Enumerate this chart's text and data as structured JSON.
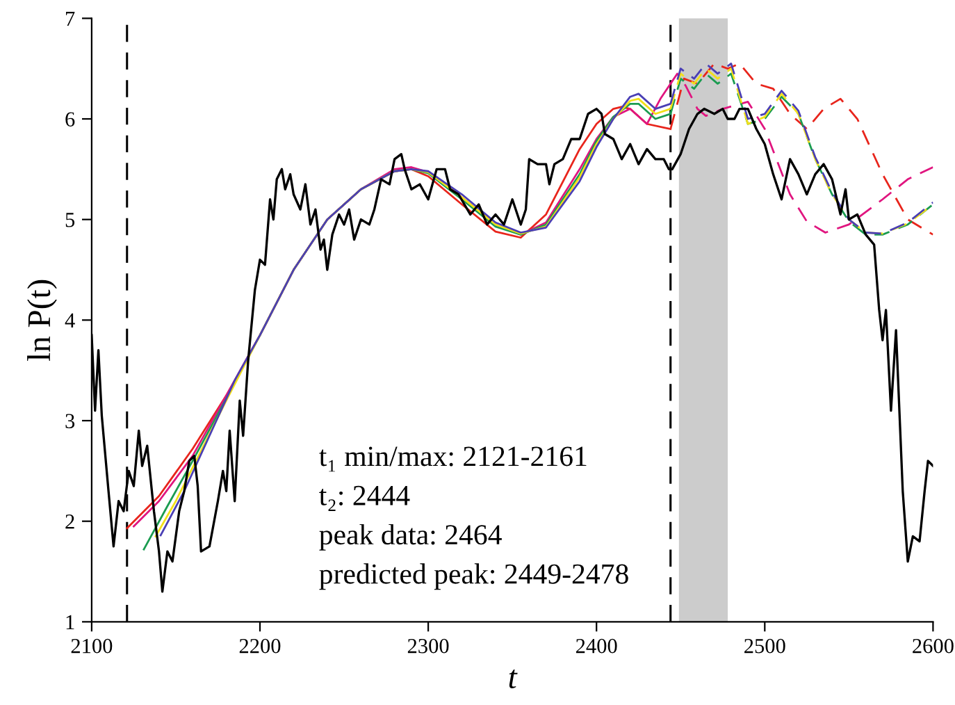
{
  "chart_data": {
    "type": "line",
    "xlabel": "t",
    "ylabel": "ln P(t)",
    "xlim": [
      2100,
      2600
    ],
    "ylim": [
      1,
      7
    ],
    "xticks": [
      2100,
      2200,
      2300,
      2400,
      2500,
      2600
    ],
    "yticks": [
      1,
      2,
      3,
      4,
      5,
      6,
      7
    ],
    "grid": false,
    "legend": false,
    "marker": "none",
    "ref_lines": [
      {
        "axis": "x",
        "value": 2121,
        "color": "#000000",
        "line_style": "dashed"
      },
      {
        "axis": "x",
        "value": 2444,
        "color": "#000000",
        "line_style": "dashed"
      }
    ],
    "bands": [
      {
        "axis": "x",
        "from": 2449,
        "to": 2478,
        "color": "#cccccc"
      }
    ],
    "annotations": [
      "t₁ min/max: 2121-2161",
      "t₂: 2444",
      "peak data: 2464",
      "predicted peak: 2449-2478"
    ],
    "series": [
      {
        "color": "#000000",
        "line_style": "solid",
        "x": [
          2100,
          2102,
          2104,
          2106,
          2110,
          2113,
          2116,
          2119,
          2122,
          2125,
          2128,
          2130,
          2133,
          2137,
          2140,
          2142,
          2145,
          2148,
          2152,
          2155,
          2158,
          2161,
          2163,
          2165,
          2170,
          2175,
          2178,
          2180,
          2182,
          2185,
          2188,
          2190,
          2193,
          2197,
          2200,
          2203,
          2206,
          2208,
          2210,
          2213,
          2215,
          2218,
          2220,
          2224,
          2227,
          2230,
          2233,
          2236,
          2238,
          2240,
          2243,
          2247,
          2250,
          2253,
          2256,
          2260,
          2265,
          2268,
          2272,
          2277,
          2280,
          2284,
          2286,
          2290,
          2295,
          2300,
          2305,
          2310,
          2313,
          2318,
          2325,
          2330,
          2335,
          2340,
          2345,
          2350,
          2355,
          2358,
          2360,
          2365,
          2370,
          2372,
          2375,
          2380,
          2385,
          2390,
          2395,
          2400,
          2403,
          2405,
          2410,
          2415,
          2420,
          2425,
          2430,
          2435,
          2440,
          2443,
          2445,
          2450,
          2455,
          2460,
          2464,
          2470,
          2475,
          2478,
          2482,
          2485,
          2490,
          2495,
          2500,
          2505,
          2510,
          2515,
          2520,
          2525,
          2530,
          2535,
          2540,
          2545,
          2548,
          2550,
          2555,
          2560,
          2565,
          2568,
          2570,
          2572,
          2575,
          2578,
          2582,
          2585,
          2588,
          2592,
          2595,
          2597,
          2600
        ],
        "values": [
          3.85,
          3.1,
          3.7,
          3.05,
          2.3,
          1.75,
          2.2,
          2.1,
          2.5,
          2.35,
          2.9,
          2.55,
          2.75,
          2.1,
          1.7,
          1.3,
          1.7,
          1.6,
          2.1,
          2.3,
          2.6,
          2.65,
          2.35,
          1.7,
          1.75,
          2.2,
          2.5,
          2.3,
          2.9,
          2.2,
          3.2,
          2.85,
          3.6,
          4.3,
          4.6,
          4.55,
          5.2,
          5.0,
          5.4,
          5.5,
          5.3,
          5.45,
          5.25,
          5.1,
          5.35,
          4.95,
          5.1,
          4.7,
          4.8,
          4.5,
          4.85,
          5.05,
          4.95,
          5.1,
          4.8,
          5.0,
          4.95,
          5.1,
          5.4,
          5.35,
          5.6,
          5.65,
          5.5,
          5.3,
          5.35,
          5.2,
          5.5,
          5.5,
          5.3,
          5.25,
          5.05,
          5.15,
          4.95,
          5.05,
          4.95,
          5.2,
          4.95,
          5.1,
          5.6,
          5.55,
          5.55,
          5.35,
          5.55,
          5.6,
          5.8,
          5.8,
          6.05,
          6.1,
          6.05,
          5.85,
          5.8,
          5.6,
          5.75,
          5.55,
          5.7,
          5.6,
          5.6,
          5.5,
          5.5,
          5.65,
          5.9,
          6.05,
          6.1,
          6.05,
          6.1,
          6.0,
          6.0,
          6.1,
          6.1,
          5.9,
          5.75,
          5.45,
          5.2,
          5.6,
          5.45,
          5.25,
          5.45,
          5.55,
          5.4,
          5.05,
          5.3,
          5.0,
          5.05,
          4.85,
          4.75,
          4.1,
          3.8,
          4.1,
          3.1,
          3.9,
          2.3,
          1.6,
          1.85,
          1.8,
          2.3,
          2.6,
          2.55
        ]
      },
      {
        "color": "#e8251c",
        "line_style": "solid",
        "x": [
          2121,
          2140,
          2160,
          2180,
          2200,
          2220,
          2240,
          2260,
          2280,
          2290,
          2300,
          2320,
          2340,
          2355,
          2370,
          2390,
          2400,
          2410,
          2415,
          2420,
          2430,
          2444
        ],
        "values": [
          1.93,
          2.25,
          2.72,
          3.25,
          3.85,
          4.5,
          5.0,
          5.3,
          5.48,
          5.5,
          5.43,
          5.15,
          4.88,
          4.82,
          5.05,
          5.7,
          5.95,
          6.1,
          6.12,
          6.1,
          5.95,
          5.9
        ]
      },
      {
        "color": "#e0157f",
        "line_style": "solid",
        "x": [
          2125,
          2140,
          2160,
          2180,
          2200,
          2220,
          2240,
          2260,
          2280,
          2290,
          2300,
          2320,
          2340,
          2355,
          2370,
          2390,
          2400,
          2410,
          2420,
          2430,
          2438,
          2444
        ],
        "values": [
          1.95,
          2.2,
          2.65,
          3.25,
          3.85,
          4.5,
          5.0,
          5.3,
          5.5,
          5.52,
          5.47,
          5.22,
          4.95,
          4.85,
          4.97,
          5.5,
          5.8,
          6.02,
          6.1,
          5.95,
          6.2,
          6.35
        ]
      },
      {
        "color": "#1a9c50",
        "line_style": "solid",
        "x": [
          2131,
          2145,
          2160,
          2180,
          2200,
          2220,
          2240,
          2260,
          2280,
          2290,
          2300,
          2320,
          2340,
          2355,
          2370,
          2390,
          2400,
          2410,
          2420,
          2425,
          2435,
          2444
        ],
        "values": [
          1.72,
          2.15,
          2.6,
          3.22,
          3.85,
          4.5,
          5.0,
          5.3,
          5.48,
          5.5,
          5.46,
          5.2,
          4.93,
          4.85,
          4.95,
          5.45,
          5.78,
          6.02,
          6.15,
          6.15,
          6.0,
          6.05
        ]
      },
      {
        "color": "#f2e01a",
        "line_style": "solid",
        "x": [
          2138,
          2150,
          2165,
          2180,
          2200,
          2220,
          2240,
          2260,
          2280,
          2290,
          2300,
          2320,
          2340,
          2355,
          2370,
          2390,
          2400,
          2410,
          2420,
          2425,
          2435,
          2444
        ],
        "values": [
          1.85,
          2.2,
          2.7,
          3.2,
          3.85,
          4.5,
          5.0,
          5.3,
          5.48,
          5.5,
          5.47,
          5.22,
          4.95,
          4.86,
          4.93,
          5.42,
          5.75,
          6.0,
          6.18,
          6.2,
          6.05,
          6.1
        ]
      },
      {
        "color": "#4a3fb5",
        "line_style": "solid",
        "x": [
          2141,
          2155,
          2170,
          2185,
          2200,
          2220,
          2240,
          2260,
          2280,
          2290,
          2300,
          2320,
          2340,
          2355,
          2370,
          2390,
          2400,
          2410,
          2420,
          2425,
          2435,
          2444
        ],
        "values": [
          1.86,
          2.3,
          2.85,
          3.4,
          3.85,
          4.5,
          5.0,
          5.3,
          5.48,
          5.5,
          5.48,
          5.25,
          4.97,
          4.87,
          4.92,
          5.38,
          5.72,
          6.0,
          6.22,
          6.25,
          6.1,
          6.15
        ]
      },
      {
        "color": "#e8251c",
        "line_style": "dashed",
        "x": [
          2444,
          2452,
          2460,
          2470,
          2478,
          2485,
          2495,
          2505,
          2515,
          2525,
          2535,
          2545,
          2555,
          2570,
          2585,
          2600
        ],
        "values": [
          5.9,
          6.4,
          6.35,
          6.55,
          6.5,
          6.55,
          6.35,
          6.3,
          6.05,
          5.9,
          6.1,
          6.2,
          6.0,
          5.45,
          5.0,
          4.85
        ]
      },
      {
        "color": "#e0157f",
        "line_style": "dashed",
        "x": [
          2444,
          2448,
          2453,
          2460,
          2465,
          2475,
          2490,
          2500,
          2515,
          2525,
          2536,
          2550,
          2570,
          2585,
          2600
        ],
        "values": [
          6.35,
          6.45,
          6.33,
          6.1,
          6.03,
          6.1,
          6.17,
          5.9,
          5.25,
          4.98,
          4.87,
          4.95,
          5.2,
          5.4,
          5.52
        ]
      },
      {
        "color": "#1a9c50",
        "line_style": "dashed",
        "x": [
          2444,
          2450,
          2458,
          2465,
          2472,
          2480,
          2490,
          2500,
          2510,
          2520,
          2530,
          2540,
          2550,
          2560,
          2570,
          2585,
          2600
        ],
        "values": [
          6.05,
          6.4,
          6.3,
          6.45,
          6.35,
          6.45,
          5.95,
          6.0,
          6.22,
          6.05,
          5.6,
          5.25,
          4.98,
          4.85,
          4.85,
          4.95,
          5.15
        ]
      },
      {
        "color": "#f2e01a",
        "line_style": "dashed",
        "x": [
          2444,
          2450,
          2458,
          2465,
          2472,
          2480,
          2490,
          2500,
          2510,
          2520,
          2530,
          2540,
          2550,
          2560,
          2570,
          2585,
          2600
        ],
        "values": [
          6.1,
          6.45,
          6.35,
          6.5,
          6.4,
          6.5,
          5.95,
          6.02,
          6.25,
          6.05,
          5.6,
          5.25,
          5.0,
          4.87,
          4.86,
          4.96,
          5.15
        ]
      },
      {
        "color": "#4a3fb5",
        "line_style": "dashed",
        "x": [
          2444,
          2450,
          2458,
          2465,
          2472,
          2480,
          2490,
          2500,
          2510,
          2520,
          2530,
          2540,
          2550,
          2560,
          2570,
          2585,
          2600
        ],
        "values": [
          6.15,
          6.5,
          6.4,
          6.55,
          6.45,
          6.55,
          6.0,
          6.05,
          6.28,
          6.08,
          5.62,
          5.27,
          5.0,
          4.87,
          4.86,
          4.97,
          5.17
        ]
      }
    ]
  }
}
